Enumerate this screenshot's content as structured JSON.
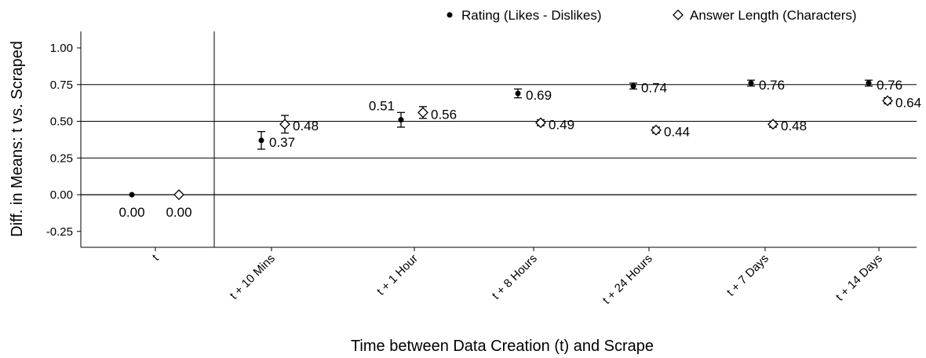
{
  "chart_data": {
    "type": "scatter",
    "title": "",
    "xlabel": "Time between Data Creation (t) and Scrape",
    "ylabel": "Diff. in Means: t vs. Scraped",
    "categories": [
      "t",
      "t + 10 Mins",
      "t + 1 Hour",
      "t + 8 Hours",
      "t + 24 Hours",
      "t + 7 Days",
      "t + 14 Days"
    ],
    "ylim": [
      -0.35,
      1.1
    ],
    "yticks": [
      1.0,
      0.75,
      0.5,
      0.25,
      0.0,
      -0.25
    ],
    "ytick_labels": [
      "1.00",
      "0.75",
      "0.50",
      "0.25",
      "0.00",
      "-0.25"
    ],
    "grid": "horizontal",
    "legend_position": "top-right",
    "series": [
      {
        "name": "Rating (Likes - Dislikes)",
        "marker": "filled-circle",
        "values": [
          0.0,
          0.37,
          0.51,
          0.69,
          0.74,
          0.76,
          0.76
        ],
        "labels": [
          "0.00",
          "0.37",
          "0.51",
          "0.69",
          "0.74",
          "0.76",
          "0.76"
        ],
        "error_low": [
          0.0,
          0.31,
          0.46,
          0.66,
          0.72,
          0.74,
          0.74
        ],
        "error_high": [
          0.0,
          0.43,
          0.56,
          0.72,
          0.76,
          0.78,
          0.78
        ]
      },
      {
        "name": "Answer Length (Characters)",
        "marker": "hollow-diamond",
        "values": [
          0.0,
          0.48,
          0.56,
          0.49,
          0.44,
          0.48,
          0.64
        ],
        "labels": [
          "0.00",
          "0.48",
          "0.56",
          "0.49",
          "0.44",
          "0.48",
          "0.64"
        ],
        "error_low": [
          0.0,
          0.42,
          0.52,
          0.47,
          0.42,
          0.46,
          0.62
        ],
        "error_high": [
          0.0,
          0.54,
          0.6,
          0.51,
          0.46,
          0.5,
          0.66
        ]
      }
    ]
  }
}
